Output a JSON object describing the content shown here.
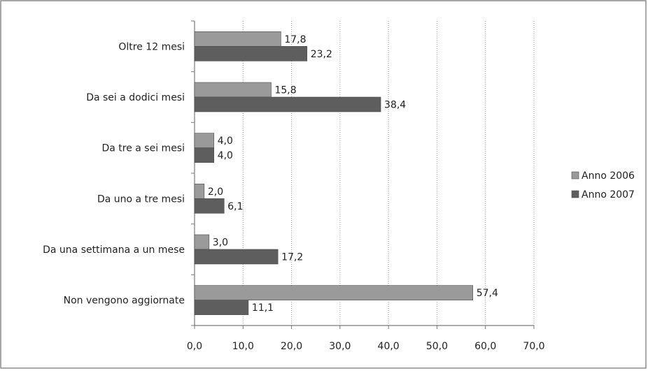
{
  "chart_data": {
    "type": "bar",
    "orientation": "horizontal",
    "categories": [
      "Oltre 12 mesi",
      "Da sei a dodici mesi",
      "Da tre a sei mesi",
      "Da uno a tre mesi",
      "Da una settimana a un mese",
      "Non vengono aggiornate"
    ],
    "series": [
      {
        "name": "Anno 2006",
        "values": [
          17.8,
          15.8,
          4.0,
          2.0,
          3.0,
          57.4
        ],
        "labels": [
          "17,8",
          "15,8",
          "4,0",
          "2,0",
          "3,0",
          "57,4"
        ],
        "color": "#9a9a9a"
      },
      {
        "name": "Anno 2007",
        "values": [
          23.2,
          38.4,
          4.0,
          6.1,
          17.2,
          11.1
        ],
        "labels": [
          "23,2",
          "38,4",
          "4,0",
          "6,1",
          "17,2",
          "11,1"
        ],
        "color": "#5e5e5e"
      }
    ],
    "xlim": [
      0,
      70
    ],
    "xticks": [
      0,
      10,
      20,
      30,
      40,
      50,
      60,
      70
    ],
    "xtick_labels": [
      "0,0",
      "10,0",
      "20,0",
      "30,0",
      "40,0",
      "50,0",
      "60,0",
      "70,0"
    ],
    "grid": "vertical dotted",
    "legend": "right",
    "title": "",
    "xlabel": "",
    "ylabel": ""
  }
}
